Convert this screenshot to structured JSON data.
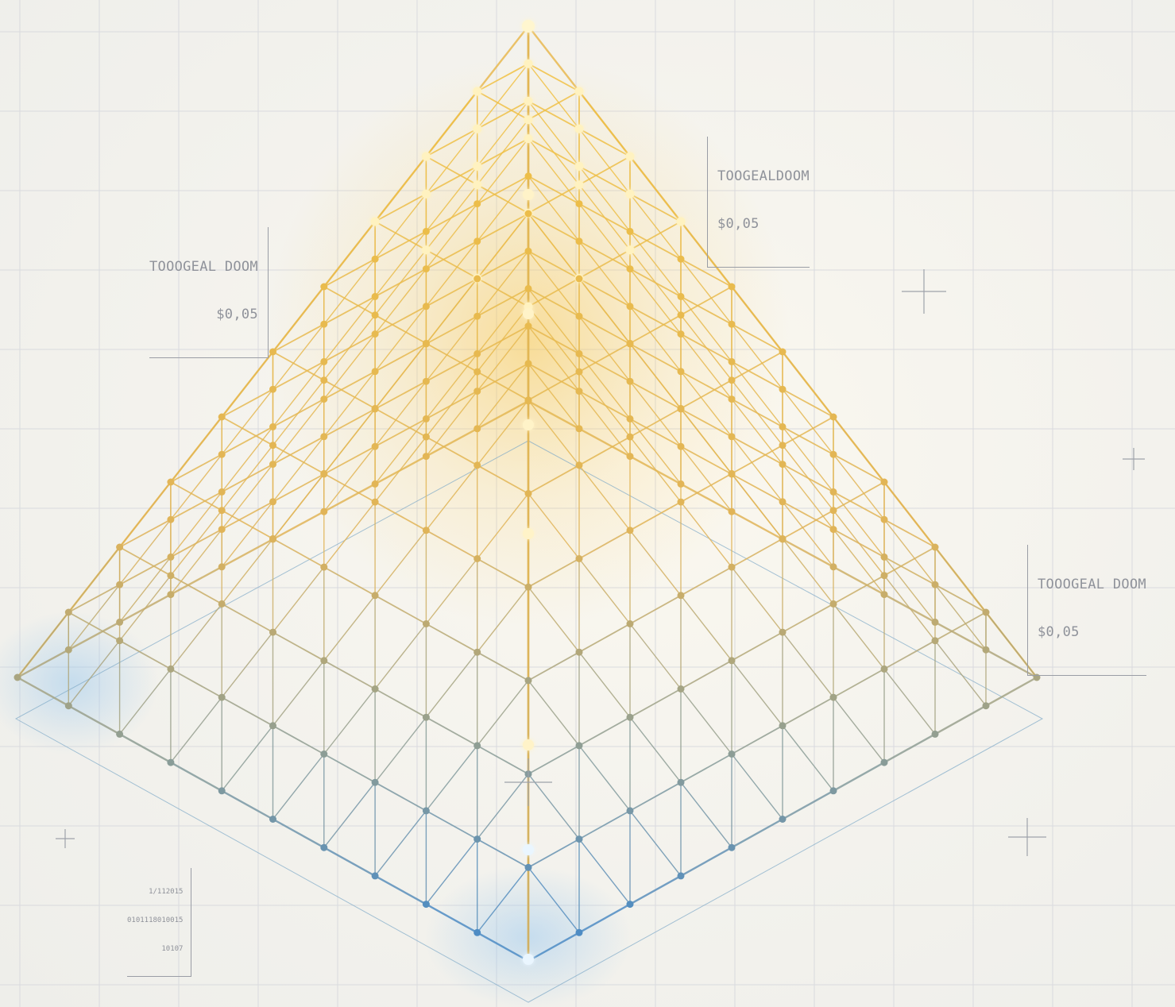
{
  "annotations": {
    "top_right": {
      "name": "TOOGEALDOOM",
      "value": "$0,05"
    },
    "left": {
      "name": "TOOOGEAL DOOM",
      "value": "$0,05"
    },
    "right": {
      "name": "TOOOGEAL DOOM",
      "value": "$0,05"
    },
    "code": {
      "line1": "1/112015",
      "line2": "0101118010015",
      "line3": "10107"
    }
  },
  "colors": {
    "apex_gold": "#f2c242",
    "mid_gold": "#e0b458",
    "base_blue": "#4e8cc4",
    "grid_line": "#d9dade",
    "label_text": "#8f929a",
    "background": "#f2f1ec"
  }
}
